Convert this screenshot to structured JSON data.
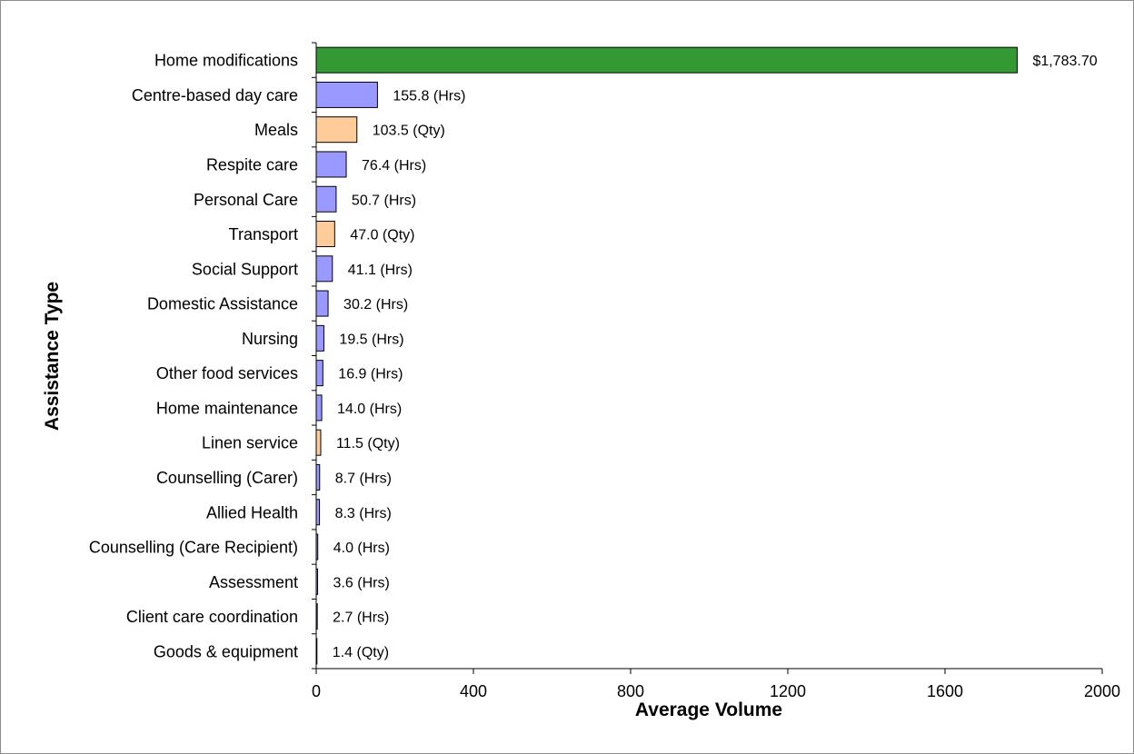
{
  "chart_data": {
    "type": "bar",
    "orientation": "horizontal",
    "title": "",
    "xlabel": "Average Volume",
    "ylabel": "Assistance Type",
    "xlim": [
      0,
      2000
    ],
    "xticks": [
      "0",
      "400",
      "800",
      "1200",
      "1600",
      "2000"
    ],
    "grid": false,
    "legend": "none",
    "categories": [
      "Home modifications",
      "Centre-based day care",
      "Meals",
      "Respite care",
      "Personal Care",
      "Transport",
      "Social Support",
      "Domestic Assistance",
      "Nursing",
      "Other food services",
      "Home maintenance",
      "Linen service",
      "Counselling (Carer)",
      "Allied Health",
      "Counselling (Care Recipient)",
      "Assessment",
      "Client care coordination",
      "Goods & equipment"
    ],
    "values": [
      1783.7,
      155.8,
      103.5,
      76.4,
      50.7,
      47.0,
      41.1,
      30.2,
      19.5,
      16.9,
      14.0,
      11.5,
      8.7,
      8.3,
      4.0,
      3.6,
      2.7,
      1.4
    ],
    "value_labels": [
      "$1,783.70",
      "155.8 (Hrs)",
      "103.5 (Qty)",
      "76.4 (Hrs)",
      "50.7 (Hrs)",
      "47.0 (Qty)",
      "41.1 (Hrs)",
      "30.2 (Hrs)",
      "19.5 (Hrs)",
      "16.9 (Hrs)",
      "14.0 (Hrs)",
      "11.5 (Qty)",
      "8.7 (Hrs)",
      "8.3 (Hrs)",
      "4.0 (Hrs)",
      "3.6 (Hrs)",
      "2.7 (Hrs)",
      "1.4 (Qty)"
    ],
    "bar_color_keys": [
      "dollar",
      "hrs",
      "qty",
      "hrs",
      "hrs",
      "qty",
      "hrs",
      "hrs",
      "hrs",
      "hrs",
      "hrs",
      "qty",
      "hrs",
      "hrs",
      "hrs",
      "hrs",
      "hrs",
      "qty"
    ],
    "colors": {
      "dollar": "#339933",
      "hrs": "#9999ff",
      "qty": "#ffcc99",
      "outline": "#000000"
    }
  }
}
